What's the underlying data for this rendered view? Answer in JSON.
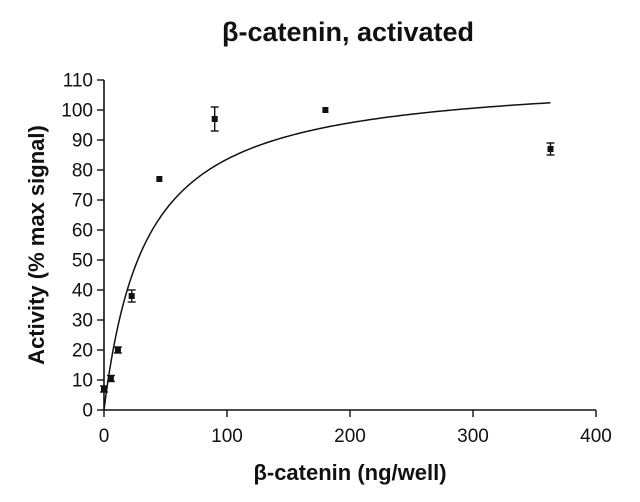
{
  "chart_data": {
    "type": "scatter",
    "title": "β-catenin, activated",
    "xlabel": "β-catenin (ng/well)",
    "ylabel": "Activity (% max signal)",
    "xlim": [
      0,
      400
    ],
    "ylim": [
      0,
      110
    ],
    "xticks": [
      0,
      100,
      200,
      300,
      400
    ],
    "yticks": [
      0,
      10,
      20,
      30,
      40,
      50,
      60,
      70,
      80,
      90,
      100,
      110
    ],
    "grid": false,
    "legend": "none",
    "points": [
      {
        "x": 0,
        "y": 7,
        "err": 1
      },
      {
        "x": 5.6,
        "y": 10.5,
        "err": 1
      },
      {
        "x": 11.3,
        "y": 20,
        "err": 1
      },
      {
        "x": 22.5,
        "y": 38,
        "err": 2
      },
      {
        "x": 45,
        "y": 77,
        "err": 0.5
      },
      {
        "x": 90,
        "y": 97,
        "err": 4
      },
      {
        "x": 180,
        "y": 100,
        "err": 0.5
      },
      {
        "x": 363,
        "y": 87,
        "err": 2
      }
    ],
    "fit_curve": {
      "model": "hyperbola",
      "x_range": [
        0,
        363
      ],
      "vmax": 112,
      "k": 34
    }
  }
}
